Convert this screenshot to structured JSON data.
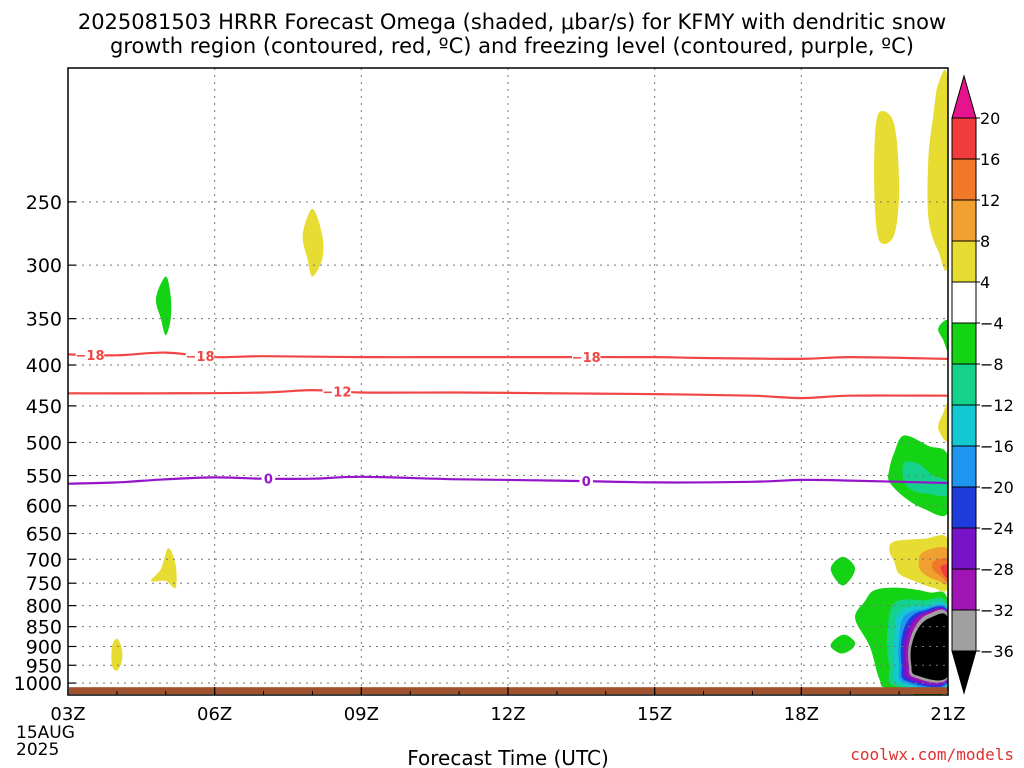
{
  "title_line1": "2025081503 HRRR Forecast Omega (shaded, μbar/s) for KFMY with dendritic snow",
  "title_line2": "growth region (contoured, red, ºC) and freezing level (contoured, purple, ºC)",
  "xlabel": "Forecast Time (UTC)",
  "credit": "coolwx.com/models",
  "chart_data": {
    "type": "heatmap",
    "title": "2025081503 HRRR Forecast Omega (shaded, μbar/s) for KFMY with dendritic snow growth region (contoured, red, ºC) and freezing level (contoured, purple, ºC)",
    "xlabel": "Forecast Time (UTC)",
    "ylabel": "",
    "x_unit": "hours from 03Z 15AUG 2025",
    "xlim": [
      0,
      18
    ],
    "ylim": [
      1035,
      170
    ],
    "y_scale": "log pressure (hPa)",
    "grid": true,
    "x_ticks": [
      {
        "x": 0,
        "label": "03Z",
        "sub": [
          "15AUG",
          "2025"
        ]
      },
      {
        "x": 3,
        "label": "06Z"
      },
      {
        "x": 6,
        "label": "09Z"
      },
      {
        "x": 9,
        "label": "12Z"
      },
      {
        "x": 12,
        "label": "15Z"
      },
      {
        "x": 15,
        "label": "18Z"
      },
      {
        "x": 18,
        "label": "21Z"
      }
    ],
    "y_ticks": [
      250,
      300,
      350,
      400,
      450,
      500,
      550,
      600,
      650,
      700,
      750,
      800,
      850,
      900,
      950,
      1000
    ],
    "colorbar": {
      "labels": [
        "20",
        "16",
        "12",
        "8",
        "4",
        "−4",
        "−8",
        "−12",
        "−16",
        "−20",
        "−24",
        "−28",
        "−32",
        "−36"
      ],
      "bands": [
        {
          "lo": 16,
          "hi": 20,
          "color": "#f03c3c"
        },
        {
          "lo": 12,
          "hi": 16,
          "color": "#f07828"
        },
        {
          "lo": 8,
          "hi": 12,
          "color": "#f0a030"
        },
        {
          "lo": 4,
          "hi": 8,
          "color": "#e6dc32"
        },
        {
          "lo": -4,
          "hi": 4,
          "color": "#ffffff"
        },
        {
          "lo": -8,
          "hi": -4,
          "color": "#14d214"
        },
        {
          "lo": -12,
          "hi": -8,
          "color": "#14d28c"
        },
        {
          "lo": -16,
          "hi": -12,
          "color": "#14c8d2"
        },
        {
          "lo": -20,
          "hi": -16,
          "color": "#1e96f0"
        },
        {
          "lo": -24,
          "hi": -20,
          "color": "#1e3cdc"
        },
        {
          "lo": -28,
          "hi": -24,
          "color": "#7814c8"
        },
        {
          "lo": -32,
          "hi": -28,
          "color": "#a014b4"
        },
        {
          "lo": -36,
          "hi": -32,
          "color": "#a0a0a0"
        }
      ],
      "top_arrow_color": "#e6148c",
      "bottom_arrow_color": "#000000"
    },
    "contours": [
      {
        "name": "-18",
        "color": "#f04646",
        "labels_at": [
          0.45,
          2.7,
          10.6
        ],
        "points": [
          [
            0,
            388
          ],
          [
            1,
            389
          ],
          [
            2,
            386
          ],
          [
            3,
            391
          ],
          [
            4,
            390
          ],
          [
            6,
            391
          ],
          [
            8,
            391
          ],
          [
            10,
            391
          ],
          [
            12,
            391
          ],
          [
            13,
            392
          ],
          [
            15,
            393
          ],
          [
            16,
            391
          ],
          [
            18,
            393
          ]
        ]
      },
      {
        "name": "-12",
        "color": "#f04646",
        "labels_at": [
          5.5
        ],
        "points": [
          [
            0,
            434
          ],
          [
            2,
            434
          ],
          [
            4,
            433
          ],
          [
            5,
            430
          ],
          [
            6,
            433
          ],
          [
            8,
            433
          ],
          [
            10,
            434
          ],
          [
            12,
            435
          ],
          [
            14,
            437
          ],
          [
            15,
            440
          ],
          [
            16,
            437
          ],
          [
            18,
            437
          ]
        ]
      },
      {
        "name": "0",
        "color": "#9614c8",
        "labels_at": [
          4.1,
          10.6
        ],
        "points": [
          [
            0,
            563
          ],
          [
            1,
            561
          ],
          [
            2,
            556
          ],
          [
            3,
            553
          ],
          [
            4,
            555
          ],
          [
            5,
            555
          ],
          [
            6,
            552
          ],
          [
            8,
            556
          ],
          [
            10,
            558
          ],
          [
            12,
            561
          ],
          [
            14,
            560
          ],
          [
            15,
            557
          ],
          [
            16,
            558
          ],
          [
            18,
            562
          ]
        ]
      }
    ],
    "shaded_regions": [
      {
        "value_range": [
          4,
          8
        ],
        "color": "#e6dc32",
        "points": [
          [
            16.6,
            193
          ],
          [
            16.9,
            200
          ],
          [
            17.0,
            240
          ],
          [
            16.9,
            275
          ],
          [
            16.6,
            280
          ],
          [
            16.5,
            250
          ],
          [
            16.5,
            210
          ]
        ]
      },
      {
        "value_range": [
          4,
          8
        ],
        "color": "#e6dc32",
        "points": [
          [
            17.8,
            178
          ],
          [
            18.0,
            178
          ],
          [
            18.0,
            295
          ],
          [
            17.8,
            288
          ],
          [
            17.6,
            262
          ],
          [
            17.6,
            220
          ],
          [
            17.7,
            195
          ]
        ]
      },
      {
        "value_range": [
          4,
          8
        ],
        "color": "#e6dc32",
        "points": [
          [
            5.0,
            255
          ],
          [
            5.2,
            275
          ],
          [
            5.2,
            295
          ],
          [
            5.0,
            310
          ],
          [
            4.9,
            295
          ],
          [
            4.8,
            275
          ]
        ]
      },
      {
        "value_range": [
          -8,
          -4
        ],
        "color": "#14d214",
        "points": [
          [
            2.0,
            310
          ],
          [
            2.1,
            328
          ],
          [
            2.1,
            350
          ],
          [
            2.0,
            367
          ],
          [
            1.9,
            350
          ],
          [
            1.8,
            330
          ]
        ]
      },
      {
        "value_range": [
          -8,
          -4
        ],
        "color": "#14d214",
        "points": [
          [
            18.0,
            352
          ],
          [
            18.0,
            383
          ],
          [
            17.9,
            372
          ],
          [
            17.8,
            360
          ]
        ]
      },
      {
        "value_range": [
          4,
          8
        ],
        "color": "#e6dc32",
        "points": [
          [
            18.0,
            448
          ],
          [
            18.0,
            498
          ],
          [
            17.8,
            480
          ],
          [
            17.9,
            460
          ]
        ]
      },
      {
        "value_range": [
          -8,
          -4
        ],
        "color": "#14d214",
        "points": [
          [
            17.1,
            490
          ],
          [
            17.6,
            505
          ],
          [
            18.0,
            520
          ],
          [
            18.0,
            612
          ],
          [
            17.5,
            605
          ],
          [
            17.1,
            585
          ],
          [
            16.8,
            560
          ],
          [
            16.8,
            540
          ],
          [
            16.9,
            515
          ]
        ]
      },
      {
        "value_range": [
          -12,
          -8
        ],
        "color": "#14d28c",
        "points": [
          [
            17.1,
            530
          ],
          [
            17.4,
            532
          ],
          [
            17.7,
            550
          ],
          [
            18.0,
            560
          ],
          [
            18.0,
            583
          ],
          [
            17.6,
            580
          ],
          [
            17.3,
            575
          ],
          [
            17.1,
            560
          ]
        ]
      },
      {
        "value_range": [
          4,
          8
        ],
        "color": "#e6dc32",
        "points": [
          [
            2.05,
            678
          ],
          [
            2.2,
            710
          ],
          [
            2.2,
            760
          ],
          [
            2.0,
            745
          ],
          [
            1.7,
            745
          ],
          [
            1.9,
            720
          ]
        ]
      },
      {
        "value_range": [
          4,
          8
        ],
        "color": "#e6dc32",
        "points": [
          [
            1.0,
            880
          ],
          [
            1.1,
            905
          ],
          [
            1.1,
            940
          ],
          [
            1.0,
            965
          ],
          [
            0.9,
            950
          ],
          [
            0.9,
            900
          ]
        ]
      },
      {
        "value_range": [
          -8,
          -4
        ],
        "color": "#14d214",
        "points": [
          [
            15.85,
            695
          ],
          [
            16.1,
            720
          ],
          [
            15.85,
            755
          ],
          [
            15.6,
            720
          ]
        ]
      },
      {
        "value_range": [
          -8,
          -4
        ],
        "color": "#14d214",
        "points": [
          [
            15.9,
            870
          ],
          [
            16.1,
            890
          ],
          [
            16.0,
            910
          ],
          [
            15.8,
            918
          ],
          [
            15.6,
            900
          ],
          [
            15.7,
            880
          ]
        ]
      },
      {
        "value_range": [
          4,
          8
        ],
        "color": "#e6dc32",
        "points": [
          [
            16.9,
            665
          ],
          [
            17.5,
            660
          ],
          [
            18.0,
            660
          ],
          [
            18.0,
            760
          ],
          [
            17.7,
            760
          ],
          [
            17.3,
            745
          ],
          [
            17.0,
            730
          ],
          [
            16.9,
            705
          ],
          [
            16.8,
            682
          ]
        ]
      },
      {
        "value_range": [
          8,
          12
        ],
        "color": "#f0a030",
        "points": [
          [
            17.5,
            685
          ],
          [
            18.0,
            680
          ],
          [
            18.0,
            748
          ],
          [
            17.8,
            745
          ],
          [
            17.5,
            730
          ],
          [
            17.4,
            710
          ]
        ]
      },
      {
        "value_range": [
          12,
          16
        ],
        "color": "#f07828",
        "points": [
          [
            17.7,
            705
          ],
          [
            18.0,
            700
          ],
          [
            18.0,
            745
          ],
          [
            17.85,
            735
          ],
          [
            17.7,
            722
          ]
        ]
      },
      {
        "value_range": [
          16,
          20
        ],
        "color": "#f03c3c",
        "points": [
          [
            17.85,
            715
          ],
          [
            18.0,
            712
          ],
          [
            18.0,
            738
          ],
          [
            17.9,
            730
          ]
        ]
      },
      {
        "value_range": [
          -8,
          -4
        ],
        "color": "#14d214",
        "points": [
          [
            16.5,
            765
          ],
          [
            17.0,
            760
          ],
          [
            17.6,
            770
          ],
          [
            18.0,
            790
          ],
          [
            18.0,
            1020
          ],
          [
            16.8,
            1015
          ],
          [
            16.6,
            990
          ],
          [
            16.4,
            900
          ],
          [
            16.1,
            830
          ],
          [
            16.3,
            790
          ]
        ]
      },
      {
        "value_range": [
          -12,
          -8
        ],
        "color": "#14d28c",
        "points": [
          [
            16.9,
            795
          ],
          [
            17.5,
            788
          ],
          [
            18.0,
            800
          ],
          [
            18.0,
            1010
          ],
          [
            16.9,
            1008
          ],
          [
            16.8,
            950
          ],
          [
            16.75,
            880
          ]
        ]
      },
      {
        "value_range": [
          -16,
          -12
        ],
        "color": "#14c8d2",
        "points": [
          [
            17.0,
            815
          ],
          [
            17.5,
            800
          ],
          [
            18.0,
            808
          ],
          [
            18.0,
            1005
          ],
          [
            17.0,
            1002
          ],
          [
            16.9,
            950
          ],
          [
            16.9,
            880
          ]
        ]
      },
      {
        "value_range": [
          -20,
          -16
        ],
        "color": "#1e96f0",
        "points": [
          [
            17.1,
            825
          ],
          [
            17.5,
            808
          ],
          [
            18.0,
            812
          ],
          [
            18.0,
            1000
          ],
          [
            17.1,
            998
          ],
          [
            17.0,
            950
          ],
          [
            17.0,
            880
          ]
        ]
      },
      {
        "value_range": [
          -24,
          -20
        ],
        "color": "#1e3cdc",
        "points": [
          [
            17.2,
            832
          ],
          [
            17.5,
            812
          ],
          [
            18.0,
            815
          ],
          [
            18.0,
            996
          ],
          [
            17.15,
            994
          ],
          [
            17.05,
            950
          ],
          [
            17.05,
            880
          ]
        ]
      },
      {
        "value_range": [
          -28,
          -24
        ],
        "color": "#7814c8",
        "points": [
          [
            17.25,
            838
          ],
          [
            17.55,
            815
          ],
          [
            18.0,
            818
          ],
          [
            18.0,
            992
          ],
          [
            17.2,
            990
          ],
          [
            17.1,
            950
          ],
          [
            17.1,
            885
          ]
        ]
      },
      {
        "value_range": [
          -32,
          -28
        ],
        "color": "#a014b4",
        "points": [
          [
            17.3,
            842
          ],
          [
            17.55,
            818
          ],
          [
            18.0,
            820
          ],
          [
            18.0,
            988
          ],
          [
            17.25,
            986
          ],
          [
            17.15,
            950
          ],
          [
            17.15,
            890
          ]
        ]
      },
      {
        "value_range": [
          -36,
          -32
        ],
        "color": "#a0a0a0",
        "points": [
          [
            17.35,
            846
          ],
          [
            17.6,
            820
          ],
          [
            18.0,
            822
          ],
          [
            18.0,
            985
          ],
          [
            17.3,
            983
          ],
          [
            17.2,
            950
          ],
          [
            17.2,
            895
          ]
        ]
      },
      {
        "value_range": [
          -99,
          -36
        ],
        "color": "#000000",
        "points": [
          [
            17.4,
            852
          ],
          [
            17.65,
            828
          ],
          [
            18.0,
            830
          ],
          [
            18.0,
            980
          ],
          [
            17.35,
            978
          ],
          [
            17.25,
            950
          ],
          [
            17.25,
            900
          ]
        ]
      }
    ],
    "ground_color": "#a0522d"
  }
}
